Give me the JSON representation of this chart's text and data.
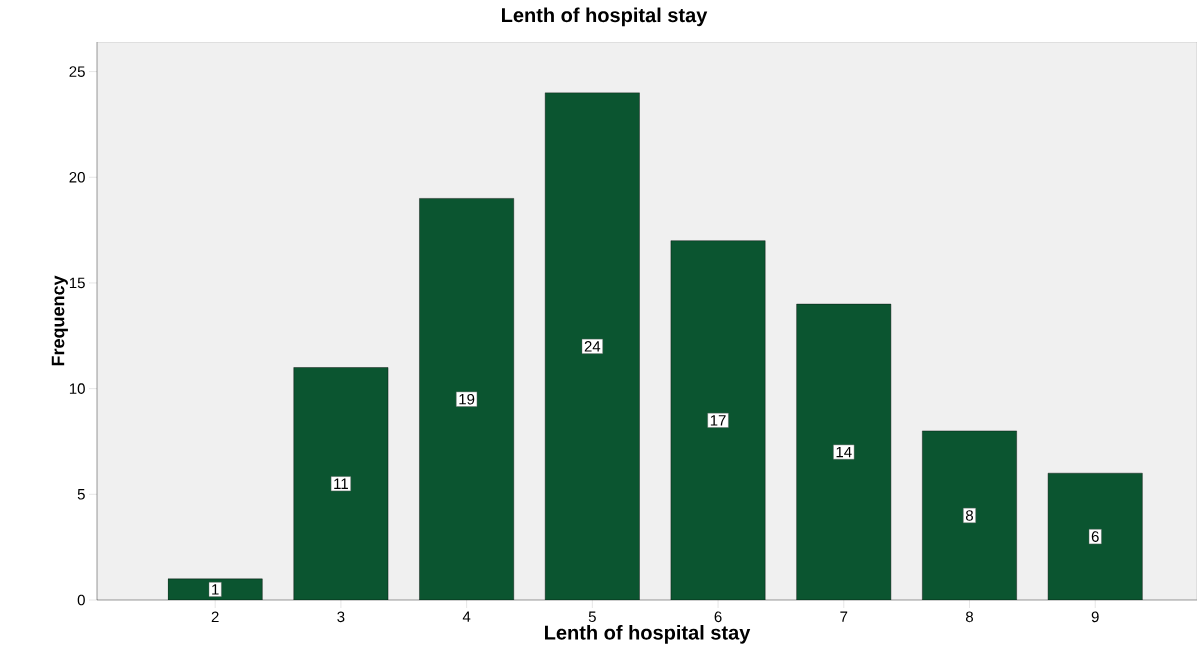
{
  "chart_data": {
    "type": "bar",
    "title": "Lenth of hospital stay",
    "xlabel": "Lenth of hospital stay",
    "ylabel": "Frequency",
    "categories": [
      "2",
      "3",
      "4",
      "5",
      "6",
      "7",
      "8",
      "9"
    ],
    "values": [
      1,
      11,
      19,
      24,
      17,
      14,
      8,
      6
    ],
    "color": "#0b5530",
    "ylim": [
      0,
      26.4
    ],
    "yticks": [
      0,
      5,
      10,
      15,
      20,
      25
    ],
    "data_labels": true,
    "grid": false
  }
}
